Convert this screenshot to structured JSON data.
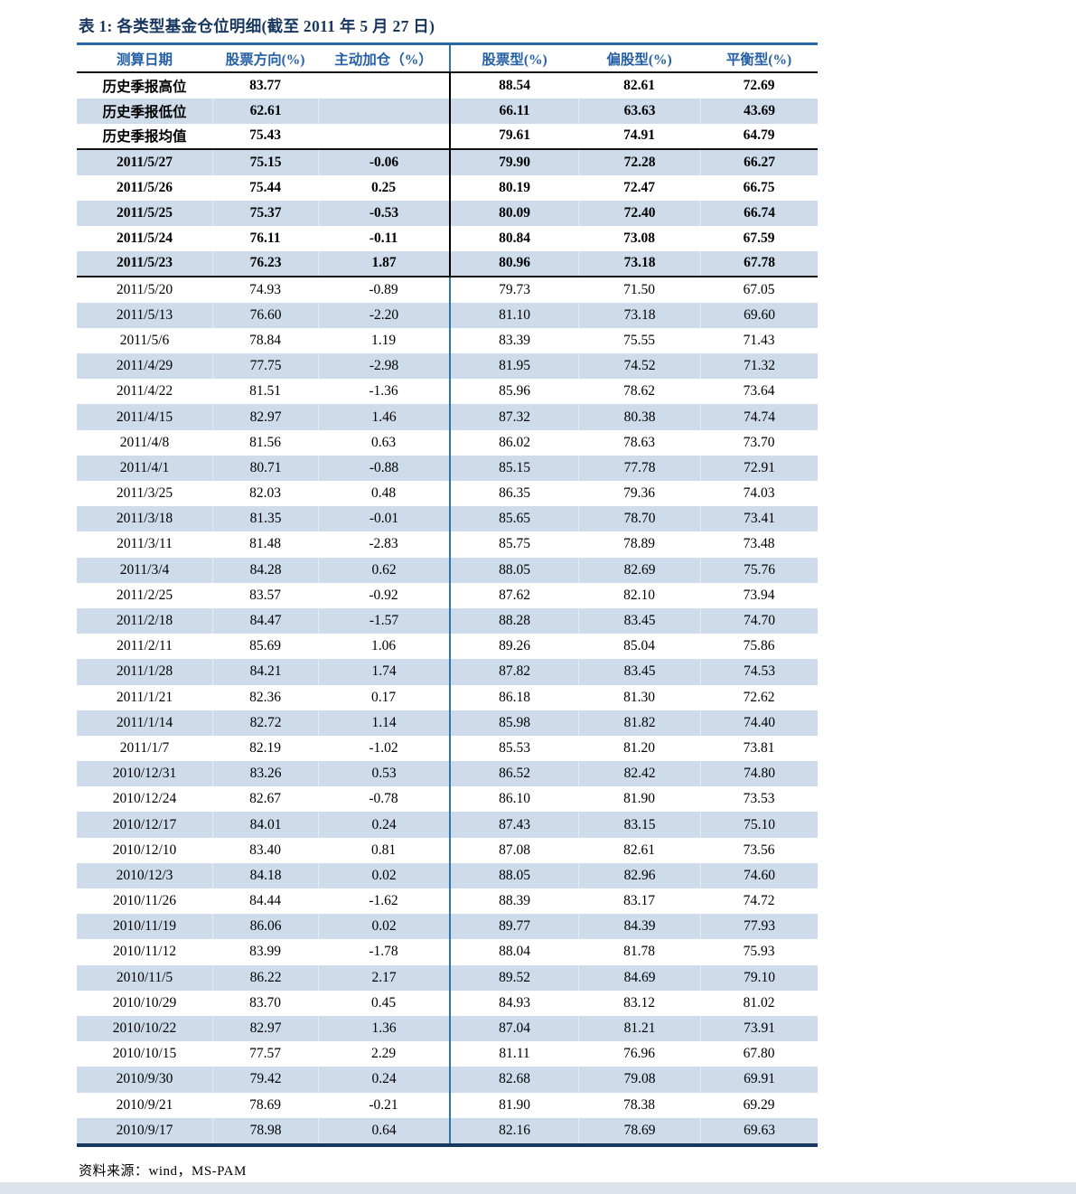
{
  "title": "表 1:  各类型基金仓位明细(截至 2011 年 5 月 27 日)",
  "colors": {
    "title_text": "#17375E",
    "header_text": "#2460A5",
    "title_underline": "#2667A8",
    "row_highlight": "#CDDBEA",
    "divider_blue": "#2E74B5",
    "divider_black": "#000000",
    "table_bottom_border": "#17375E",
    "bottom_bar": "#DCE3EA"
  },
  "table": {
    "columns": [
      "测算日期",
      "股票方向(%)",
      "主动加仓（%）",
      "股票型(%)",
      "偏股型(%)",
      "平衡型(%)"
    ],
    "rows": [
      {
        "label": "历史季报高位",
        "values": [
          "83.77",
          "",
          "88.54",
          "82.61",
          "72.69"
        ],
        "bold": true,
        "shaded": false,
        "section_end": false
      },
      {
        "label": "历史季报低位",
        "values": [
          "62.61",
          "",
          "66.11",
          "63.63",
          "43.69"
        ],
        "bold": true,
        "shaded": true,
        "section_end": false
      },
      {
        "label": "历史季报均值",
        "values": [
          "75.43",
          "",
          "79.61",
          "74.91",
          "64.79"
        ],
        "bold": true,
        "shaded": false,
        "section_end": true
      },
      {
        "label": "2011/5/27",
        "values": [
          "75.15",
          "-0.06",
          "79.90",
          "72.28",
          "66.27"
        ],
        "bold": true,
        "shaded": true,
        "section_end": false
      },
      {
        "label": "2011/5/26",
        "values": [
          "75.44",
          "0.25",
          "80.19",
          "72.47",
          "66.75"
        ],
        "bold": true,
        "shaded": false,
        "section_end": false
      },
      {
        "label": "2011/5/25",
        "values": [
          "75.37",
          "-0.53",
          "80.09",
          "72.40",
          "66.74"
        ],
        "bold": true,
        "shaded": true,
        "section_end": false
      },
      {
        "label": "2011/5/24",
        "values": [
          "76.11",
          "-0.11",
          "80.84",
          "73.08",
          "67.59"
        ],
        "bold": true,
        "shaded": false,
        "section_end": false
      },
      {
        "label": "2011/5/23",
        "values": [
          "76.23",
          "1.87",
          "80.96",
          "73.18",
          "67.78"
        ],
        "bold": true,
        "shaded": true,
        "section_end": true
      },
      {
        "label": "2011/5/20",
        "values": [
          "74.93",
          "-0.89",
          "79.73",
          "71.50",
          "67.05"
        ],
        "bold": false,
        "shaded": false,
        "section_end": false
      },
      {
        "label": "2011/5/13",
        "values": [
          "76.60",
          "-2.20",
          "81.10",
          "73.18",
          "69.60"
        ],
        "bold": false,
        "shaded": true,
        "section_end": false
      },
      {
        "label": "2011/5/6",
        "values": [
          "78.84",
          "1.19",
          "83.39",
          "75.55",
          "71.43"
        ],
        "bold": false,
        "shaded": false,
        "section_end": false
      },
      {
        "label": "2011/4/29",
        "values": [
          "77.75",
          "-2.98",
          "81.95",
          "74.52",
          "71.32"
        ],
        "bold": false,
        "shaded": true,
        "section_end": false
      },
      {
        "label": "2011/4/22",
        "values": [
          "81.51",
          "-1.36",
          "85.96",
          "78.62",
          "73.64"
        ],
        "bold": false,
        "shaded": false,
        "section_end": false
      },
      {
        "label": "2011/4/15",
        "values": [
          "82.97",
          "1.46",
          "87.32",
          "80.38",
          "74.74"
        ],
        "bold": false,
        "shaded": true,
        "section_end": false
      },
      {
        "label": "2011/4/8",
        "values": [
          "81.56",
          "0.63",
          "86.02",
          "78.63",
          "73.70"
        ],
        "bold": false,
        "shaded": false,
        "section_end": false
      },
      {
        "label": "2011/4/1",
        "values": [
          "80.71",
          "-0.88",
          "85.15",
          "77.78",
          "72.91"
        ],
        "bold": false,
        "shaded": true,
        "section_end": false
      },
      {
        "label": "2011/3/25",
        "values": [
          "82.03",
          "0.48",
          "86.35",
          "79.36",
          "74.03"
        ],
        "bold": false,
        "shaded": false,
        "section_end": false
      },
      {
        "label": "2011/3/18",
        "values": [
          "81.35",
          "-0.01",
          "85.65",
          "78.70",
          "73.41"
        ],
        "bold": false,
        "shaded": true,
        "section_end": false
      },
      {
        "label": "2011/3/11",
        "values": [
          "81.48",
          "-2.83",
          "85.75",
          "78.89",
          "73.48"
        ],
        "bold": false,
        "shaded": false,
        "section_end": false
      },
      {
        "label": "2011/3/4",
        "values": [
          "84.28",
          "0.62",
          "88.05",
          "82.69",
          "75.76"
        ],
        "bold": false,
        "shaded": true,
        "section_end": false
      },
      {
        "label": "2011/2/25",
        "values": [
          "83.57",
          "-0.92",
          "87.62",
          "82.10",
          "73.94"
        ],
        "bold": false,
        "shaded": false,
        "section_end": false
      },
      {
        "label": "2011/2/18",
        "values": [
          "84.47",
          "-1.57",
          "88.28",
          "83.45",
          "74.70"
        ],
        "bold": false,
        "shaded": true,
        "section_end": false
      },
      {
        "label": "2011/2/11",
        "values": [
          "85.69",
          "1.06",
          "89.26",
          "85.04",
          "75.86"
        ],
        "bold": false,
        "shaded": false,
        "section_end": false
      },
      {
        "label": "2011/1/28",
        "values": [
          "84.21",
          "1.74",
          "87.82",
          "83.45",
          "74.53"
        ],
        "bold": false,
        "shaded": true,
        "section_end": false
      },
      {
        "label": "2011/1/21",
        "values": [
          "82.36",
          "0.17",
          "86.18",
          "81.30",
          "72.62"
        ],
        "bold": false,
        "shaded": false,
        "section_end": false
      },
      {
        "label": "2011/1/14",
        "values": [
          "82.72",
          "1.14",
          "85.98",
          "81.82",
          "74.40"
        ],
        "bold": false,
        "shaded": true,
        "section_end": false
      },
      {
        "label": "2011/1/7",
        "values": [
          "82.19",
          "-1.02",
          "85.53",
          "81.20",
          "73.81"
        ],
        "bold": false,
        "shaded": false,
        "section_end": false
      },
      {
        "label": "2010/12/31",
        "values": [
          "83.26",
          "0.53",
          "86.52",
          "82.42",
          "74.80"
        ],
        "bold": false,
        "shaded": true,
        "section_end": false
      },
      {
        "label": "2010/12/24",
        "values": [
          "82.67",
          "-0.78",
          "86.10",
          "81.90",
          "73.53"
        ],
        "bold": false,
        "shaded": false,
        "section_end": false
      },
      {
        "label": "2010/12/17",
        "values": [
          "84.01",
          "0.24",
          "87.43",
          "83.15",
          "75.10"
        ],
        "bold": false,
        "shaded": true,
        "section_end": false
      },
      {
        "label": "2010/12/10",
        "values": [
          "83.40",
          "0.81",
          "87.08",
          "82.61",
          "73.56"
        ],
        "bold": false,
        "shaded": false,
        "section_end": false
      },
      {
        "label": "2010/12/3",
        "values": [
          "84.18",
          "0.02",
          "88.05",
          "82.96",
          "74.60"
        ],
        "bold": false,
        "shaded": true,
        "section_end": false
      },
      {
        "label": "2010/11/26",
        "values": [
          "84.44",
          "-1.62",
          "88.39",
          "83.17",
          "74.72"
        ],
        "bold": false,
        "shaded": false,
        "section_end": false
      },
      {
        "label": "2010/11/19",
        "values": [
          "86.06",
          "0.02",
          "89.77",
          "84.39",
          "77.93"
        ],
        "bold": false,
        "shaded": true,
        "section_end": false
      },
      {
        "label": "2010/11/12",
        "values": [
          "83.99",
          "-1.78",
          "88.04",
          "81.78",
          "75.93"
        ],
        "bold": false,
        "shaded": false,
        "section_end": false
      },
      {
        "label": "2010/11/5",
        "values": [
          "86.22",
          "2.17",
          "89.52",
          "84.69",
          "79.10"
        ],
        "bold": false,
        "shaded": true,
        "section_end": false
      },
      {
        "label": "2010/10/29",
        "values": [
          "83.70",
          "0.45",
          "84.93",
          "83.12",
          "81.02"
        ],
        "bold": false,
        "shaded": false,
        "section_end": false
      },
      {
        "label": "2010/10/22",
        "values": [
          "82.97",
          "1.36",
          "87.04",
          "81.21",
          "73.91"
        ],
        "bold": false,
        "shaded": true,
        "section_end": false
      },
      {
        "label": "2010/10/15",
        "values": [
          "77.57",
          "2.29",
          "81.11",
          "76.96",
          "67.80"
        ],
        "bold": false,
        "shaded": false,
        "section_end": false
      },
      {
        "label": "2010/9/30",
        "values": [
          "79.42",
          "0.24",
          "82.68",
          "79.08",
          "69.91"
        ],
        "bold": false,
        "shaded": true,
        "section_end": false
      },
      {
        "label": "2010/9/21",
        "values": [
          "78.69",
          "-0.21",
          "81.90",
          "78.38",
          "69.29"
        ],
        "bold": false,
        "shaded": false,
        "section_end": false
      },
      {
        "label": "2010/9/17",
        "values": [
          "78.98",
          "0.64",
          "82.16",
          "78.69",
          "69.63"
        ],
        "bold": false,
        "shaded": true,
        "section_end": false
      }
    ]
  },
  "footer": {
    "source": "资料来源：wind，MS-PAM"
  }
}
